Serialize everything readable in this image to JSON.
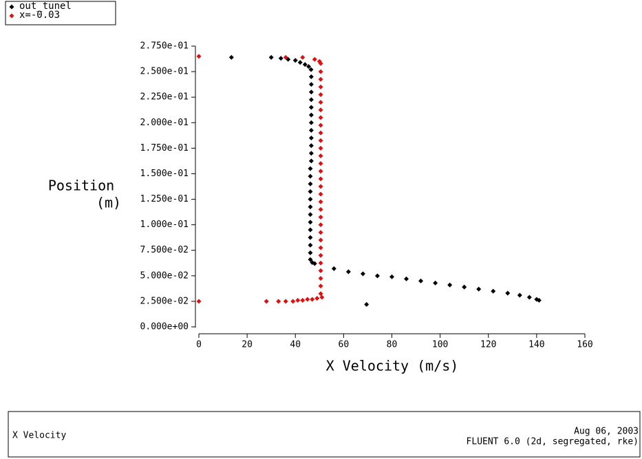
{
  "chart_data": {
    "type": "scatter",
    "xlabel": "X Velocity (m/s)",
    "ylabel": [
      "Position",
      "(m)"
    ],
    "xlim": [
      0,
      160
    ],
    "xticks": [
      0,
      20,
      40,
      60,
      80,
      100,
      120,
      140,
      160
    ],
    "ylim": [
      0,
      0.275
    ],
    "yticks": [
      {
        "value": 0,
        "label": "0.000e+00"
      },
      {
        "value": 0.025,
        "label": "2.500e-02"
      },
      {
        "value": 0.05,
        "label": "5.000e-02"
      },
      {
        "value": 0.075,
        "label": "7.500e-02"
      },
      {
        "value": 0.1,
        "label": "1.000e-01"
      },
      {
        "value": 0.125,
        "label": "1.250e-01"
      },
      {
        "value": 0.15,
        "label": "1.500e-01"
      },
      {
        "value": 0.175,
        "label": "1.750e-01"
      },
      {
        "value": 0.2,
        "label": "2.000e-01"
      },
      {
        "value": 0.225,
        "label": "2.250e-01"
      },
      {
        "value": 0.25,
        "label": "2.500e-01"
      },
      {
        "value": 0.275,
        "label": "2.750e-01"
      }
    ],
    "series": [
      {
        "name": "out_tunel",
        "color": "#000000",
        "x": [
          13.5,
          30,
          34,
          37,
          40,
          42,
          44,
          45.5,
          46.5,
          46.6,
          46.6,
          46.6,
          46.6,
          46.6,
          46.6,
          46.6,
          46.6,
          46.6,
          46.6,
          46.6,
          46.6,
          46.2,
          46.2,
          46.2,
          46.2,
          46.2,
          46.2,
          46.2,
          46.2,
          46.2,
          46.2,
          46.2,
          46.2,
          46.2,
          47,
          48,
          56,
          62,
          68,
          74,
          80,
          86,
          92,
          98,
          104,
          110,
          116,
          122,
          128,
          133,
          137,
          140,
          141,
          69.5
        ],
        "y": [
          0.264,
          0.264,
          0.263,
          0.262,
          0.261,
          0.259,
          0.257,
          0.255,
          0.252,
          0.245,
          0.2375,
          0.23,
          0.2225,
          0.215,
          0.2075,
          0.2,
          0.1925,
          0.185,
          0.1775,
          0.17,
          0.1625,
          0.155,
          0.1475,
          0.14,
          0.1325,
          0.125,
          0.1175,
          0.11,
          0.1025,
          0.095,
          0.0875,
          0.08,
          0.0725,
          0.066,
          0.063,
          0.062,
          0.057,
          0.054,
          0.052,
          0.05,
          0.049,
          0.047,
          0.045,
          0.043,
          0.041,
          0.039,
          0.037,
          0.035,
          0.033,
          0.031,
          0.029,
          0.027,
          0.026,
          0.022
        ]
      },
      {
        "name": "x=-0.03",
        "color": "#e01010",
        "x": [
          0,
          36,
          43,
          48,
          50,
          50.5,
          50.5,
          50.5,
          50.5,
          50.5,
          50.5,
          50.5,
          50.5,
          50.5,
          50.5,
          50.5,
          50.5,
          50.5,
          50.5,
          50.5,
          50.5,
          50.5,
          50.5,
          50.5,
          50.5,
          50.5,
          50.5,
          50.5,
          50.5,
          50.5,
          50.5,
          50.5,
          50.5,
          50.5,
          50.5,
          50.5,
          51,
          49,
          47,
          45,
          43,
          41,
          39,
          36,
          33,
          28,
          0
        ],
        "y": [
          0.265,
          0.264,
          0.264,
          0.262,
          0.26,
          0.258,
          0.25,
          0.2425,
          0.235,
          0.2275,
          0.22,
          0.2125,
          0.205,
          0.1975,
          0.19,
          0.1825,
          0.175,
          0.1675,
          0.16,
          0.1525,
          0.145,
          0.1375,
          0.13,
          0.1225,
          0.115,
          0.1075,
          0.1,
          0.0925,
          0.085,
          0.0775,
          0.07,
          0.0625,
          0.055,
          0.0475,
          0.04,
          0.0325,
          0.029,
          0.028,
          0.027,
          0.027,
          0.026,
          0.026,
          0.025,
          0.025,
          0.025,
          0.025,
          0.025
        ]
      }
    ]
  },
  "footer": {
    "left": "X Velocity",
    "date": "Aug 06, 2003",
    "solver": "FLUENT 6.0 (2d, segregated, rke)"
  }
}
